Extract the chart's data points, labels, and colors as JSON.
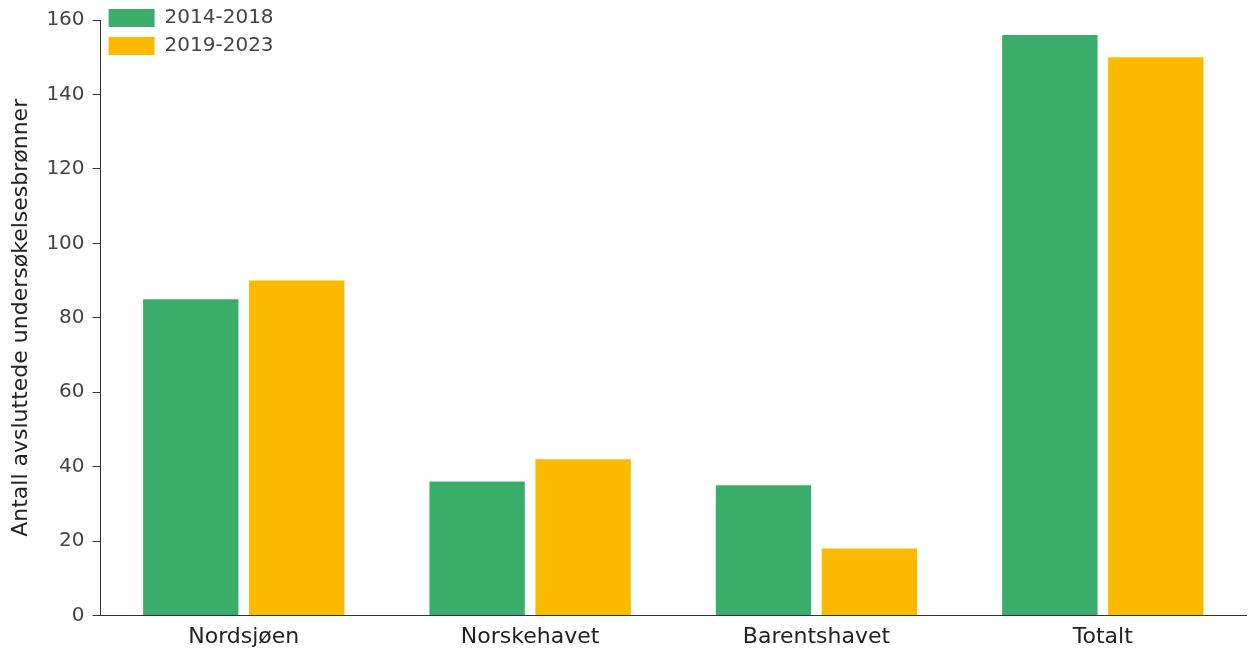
{
  "chart_data": {
    "type": "bar",
    "ylabel": "Antall avsluttede undersøkelsesbrønner",
    "categories": [
      "Nordsjøen",
      "Norskehavet",
      "Barentshavet",
      "Totalt"
    ],
    "series": [
      {
        "name": "2014-2018",
        "color": "#3aad6a",
        "values": [
          85,
          36,
          35,
          156
        ]
      },
      {
        "name": "2019-2023",
        "color": "#fbb900",
        "values": [
          90,
          42,
          18,
          150
        ]
      }
    ],
    "ylim": [
      0,
      160
    ],
    "yticks": [
      0,
      20,
      40,
      60,
      80,
      100,
      120,
      140,
      160
    ],
    "grid": false,
    "legend": "top left"
  }
}
